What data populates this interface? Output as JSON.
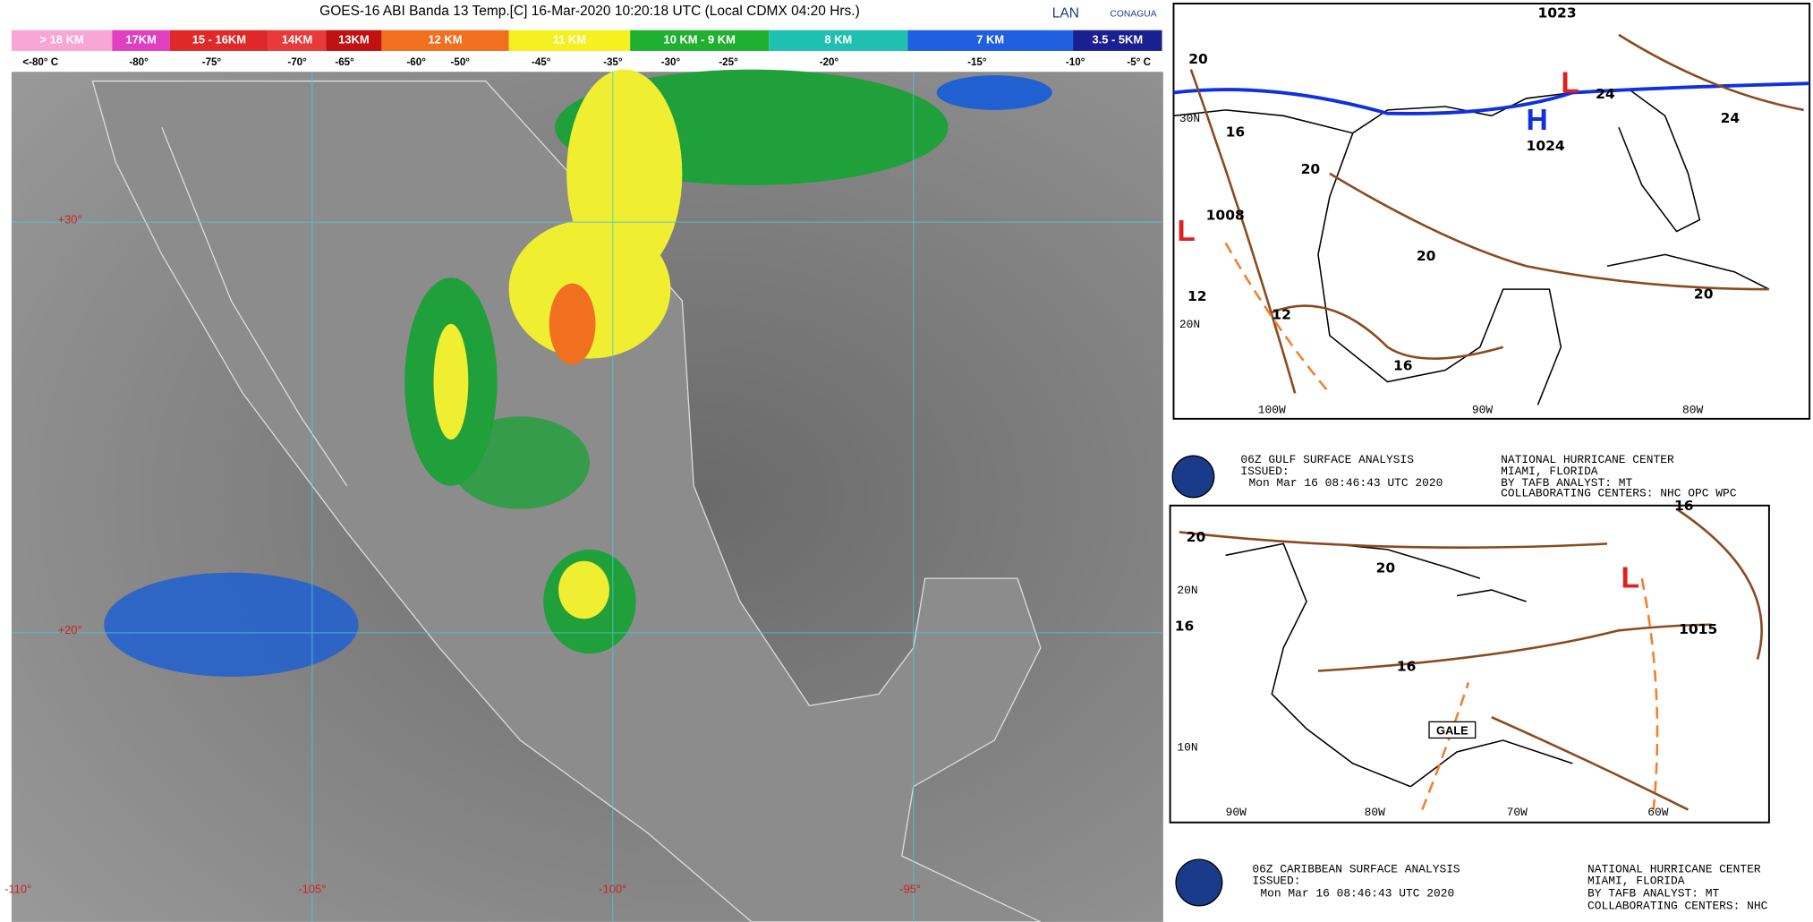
{
  "satellite": {
    "title": "GOES-16 ABI Banda 13 Temp.[C] 16-Mar-2020 10:20:18 UTC (Local CDMX  04:20 Hrs.)",
    "logos": [
      "LAN",
      "CONAGUA"
    ],
    "legend_heights": [
      "> 18 KM",
      "17KM",
      "15 - 16KM",
      "14KM",
      "13KM",
      "12 KM",
      "11 KM",
      "10 KM - 9 KM",
      "8 KM",
      "7 KM",
      "3.5 - 5KM"
    ],
    "legend_temps": [
      "<-80° C",
      "-80°",
      "-75°",
      "-70°",
      "-65°",
      "-60°",
      "-50°",
      "-45°",
      "-35°",
      "-30°",
      "-25°",
      "-20°",
      "-15°",
      "-10°",
      "-5° C"
    ],
    "lat_labels": [
      "+30°",
      "+20°"
    ],
    "lon_labels": [
      "-110°",
      "-105°",
      "-100°",
      "-95°"
    ]
  },
  "gulf_map": {
    "highs_lows": [
      "1023",
      "1024",
      "1008"
    ],
    "isobar_labels": [
      "20",
      "16",
      "20",
      "12",
      "12",
      "16",
      "20",
      "24",
      "24",
      "20"
    ],
    "lat_labels": [
      "30N",
      "20N"
    ],
    "lon_labels": [
      "100W",
      "90W",
      "80W"
    ],
    "caption": {
      "title": "06Z GULF SURFACE ANALYSIS",
      "issued": "ISSUED:",
      "time": "Mon Mar 16 08:46:43 UTC 2020",
      "center": "NATIONAL HURRICANE CENTER",
      "place": "MIAMI, FLORIDA",
      "analyst": "BY TAFB ANALYST: MT",
      "collab": "COLLABORATING CENTERS: NHC OPC WPC"
    }
  },
  "caribbean_map": {
    "highs_lows": [
      "1015"
    ],
    "isobar_labels": [
      "16",
      "20",
      "20",
      "16",
      "16"
    ],
    "gale": "GALE",
    "lat_labels": [
      "20N",
      "10N"
    ],
    "lon_labels": [
      "90W",
      "80W",
      "70W",
      "60W"
    ],
    "caption": {
      "title": "06Z CARIBBEAN SURFACE ANALYSIS",
      "issued": "ISSUED:",
      "time": "Mon Mar 16 08:46:43 UTC 2020",
      "center": "NATIONAL HURRICANE CENTER",
      "place": "MIAMI, FLORIDA",
      "analyst": "BY TAFB ANALYST: MT",
      "collab": "COLLABORATING CENTERS: NHC"
    }
  }
}
